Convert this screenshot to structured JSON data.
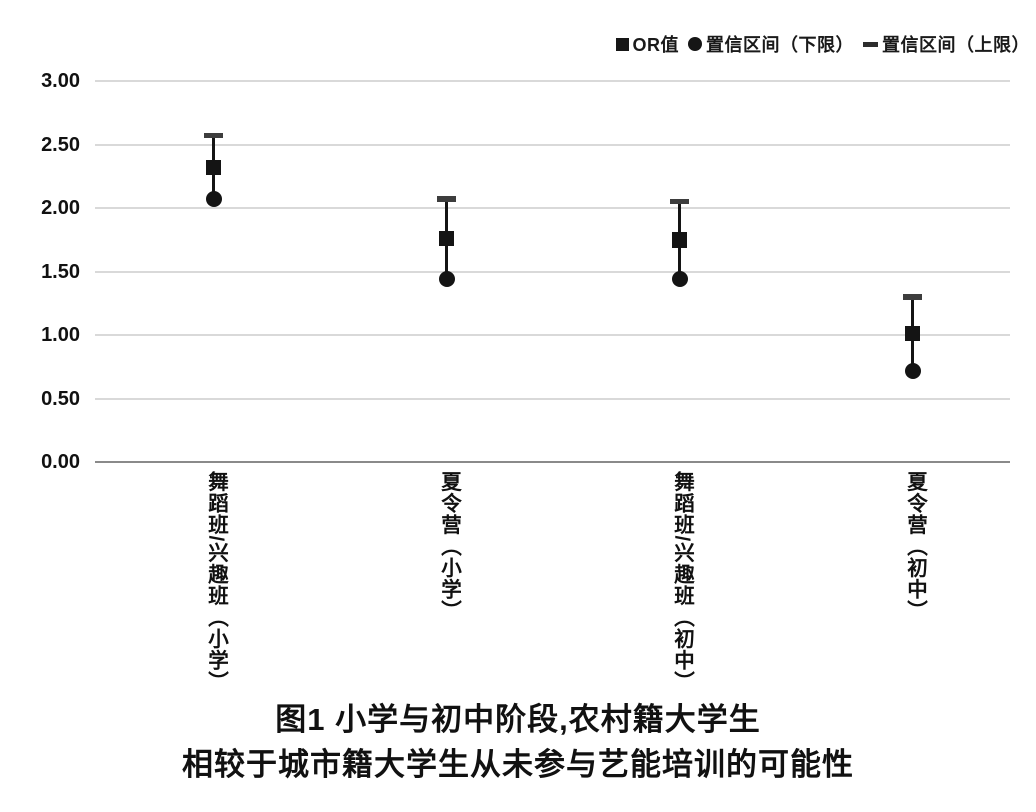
{
  "title": {
    "line1": "图1 小学与初中阶段,农村籍大学生",
    "line2": "相较于城市籍大学生从未参与艺能培训的可能性"
  },
  "legend": {
    "items": [
      {
        "symbol": "square",
        "icon_name": "square-marker-icon",
        "label": "OR值"
      },
      {
        "symbol": "circle",
        "icon_name": "circle-marker-icon",
        "label": "置信区间（下限）"
      },
      {
        "symbol": "dash",
        "icon_name": "dash-marker-icon",
        "label": "置信区间（上限）"
      }
    ]
  },
  "chart_data": {
    "type": "scatter",
    "subtype": "odds-ratio with confidence-interval error bars (high-low lines)",
    "title": "图1 小学与初中阶段,农村籍大学生相较于城市籍大学生从未参与艺能培训的可能性",
    "categories": [
      "舞蹈班/兴趣班（小学）",
      "夏令营（小学）",
      "舞蹈班/兴趣班（初中）",
      "夏令营（初中）"
    ],
    "series": [
      {
        "name": "OR值",
        "marker": "square",
        "values": [
          2.32,
          1.76,
          1.75,
          1.01
        ]
      },
      {
        "name": "置信区间（下限）",
        "marker": "circle",
        "values": [
          2.07,
          1.44,
          1.44,
          0.72
        ]
      },
      {
        "name": "置信区间（上限）",
        "marker": "dash",
        "values": [
          2.57,
          2.07,
          2.05,
          1.3
        ]
      }
    ],
    "xlabel": "",
    "ylabel": "",
    "ylim": [
      0,
      3
    ],
    "ytick_step": 0.5,
    "ytick_labels": [
      "0.00",
      "0.50",
      "1.00",
      "1.50",
      "2.00",
      "2.50",
      "3.00"
    ],
    "grid": true,
    "legend_position": "top-right"
  },
  "colors": {
    "marker": "#141414",
    "cap": "#3d3d3d",
    "gridline": "#d9d9d9",
    "axis_line": "#8a8a8a",
    "text": "#111111",
    "background": "#ffffff"
  }
}
